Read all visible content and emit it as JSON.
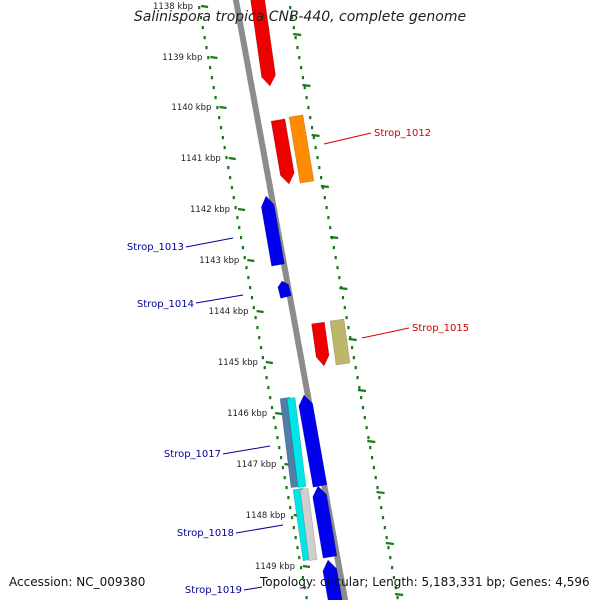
{
  "title": "Salinispora tropica CNB-440, complete genome",
  "accession_text": "Accession: NC_009380",
  "summary_text": "Topology: circular; Length: 5,183,331 bp; Genes: 4,596",
  "ticks": [
    {
      "label": "1138 kbp"
    },
    {
      "label": "1139 kbp"
    },
    {
      "label": "1140 kbp"
    },
    {
      "label": "1141 kbp"
    },
    {
      "label": "1142 kbp"
    },
    {
      "label": "1143 kbp"
    },
    {
      "label": "1144 kbp"
    },
    {
      "label": "1145 kbp"
    },
    {
      "label": "1146 kbp"
    },
    {
      "label": "1147 kbp"
    },
    {
      "label": "1148 kbp"
    },
    {
      "label": "1149 kbp"
    }
  ],
  "gene_labels": [
    {
      "text": "Strop_1012",
      "color": "#cc0000"
    },
    {
      "text": "Strop_1013",
      "color": "#000099"
    },
    {
      "text": "Strop_1014",
      "color": "#000099"
    },
    {
      "text": "Strop_1015",
      "color": "#cc0000"
    },
    {
      "text": "Strop_1017",
      "color": "#000099"
    },
    {
      "text": "Strop_1018",
      "color": "#000099"
    },
    {
      "text": "Strop_1019",
      "color": "#000099"
    }
  ],
  "colors": {
    "backbone": "#8c8c8c",
    "ruler": "#1a7a1a",
    "forward_gene": "#ee0000",
    "reverse_gene": "#0000ee",
    "orange_gene": "#ff8c00",
    "khaki_gene": "#bdb76b",
    "cyan_gene": "#00e5e5",
    "steel_gene": "#4f7fa8",
    "grey_gene": "#cfcfcf"
  }
}
